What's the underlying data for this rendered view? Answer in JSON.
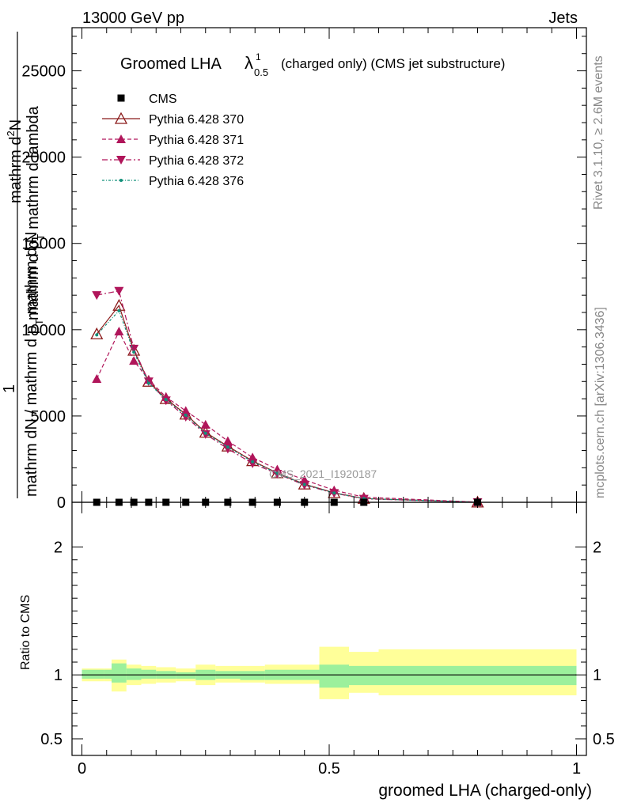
{
  "header": {
    "left": "13000 GeV pp",
    "right": "Jets"
  },
  "side": {
    "rivet": "Rivet 3.1.10, ≥ 2.6M events",
    "mcplots": "mcplots.cern.ch [arXiv:1306.3436]"
  },
  "watermark": "CMS_2021_I1920187",
  "chart_data": [
    {
      "type": "line",
      "title_main": "Groomed LHA",
      "title_lambda": "λ",
      "title_sup": "1",
      "title_sub": "0.5",
      "title_rest": "(charged only) (CMS jet substructure)",
      "ylabel": {
        "top_num": "mathrm d",
        "top_N": "N",
        "top_sup": "2",
        "top_den": "mathrm d p",
        "top_den_sub": "T",
        "top_den2": "mathrm d lambda",
        "prefix_num": "1",
        "prefix_den": "mathrm dN / mathrm d p",
        "prefix_den_sub": "T",
        "prefix_den2": "mathrm d N"
      },
      "xlim": [
        -0.02,
        1.02
      ],
      "ylim": [
        0,
        27500
      ],
      "yticks": [
        "0",
        "5000",
        "10000",
        "15000",
        "20000",
        "25000"
      ],
      "ytick_values": [
        0,
        5000,
        10000,
        15000,
        20000,
        25000
      ],
      "x": [
        0.03,
        0.075,
        0.105,
        0.135,
        0.17,
        0.21,
        0.25,
        0.295,
        0.345,
        0.395,
        0.45,
        0.51,
        0.57,
        0.8
      ],
      "series": [
        {
          "name": "CMS",
          "color": "#000000",
          "marker": "square",
          "dash": "",
          "values": [
            0,
            0,
            0,
            0,
            0,
            0,
            0,
            0,
            0,
            0,
            0,
            0,
            0,
            0
          ]
        },
        {
          "name": "Pythia 6.428 370",
          "color": "#8b1a1a",
          "marker": "tri-up-open",
          "dash": "",
          "values": [
            9750,
            11400,
            8800,
            7000,
            6000,
            5100,
            4050,
            3250,
            2400,
            1700,
            1050,
            550,
            220,
            5
          ]
        },
        {
          "name": "Pythia 6.428 371",
          "color": "#b0155a",
          "marker": "tri-up",
          "dash": "5,3",
          "values": [
            7150,
            9900,
            8200,
            7100,
            6100,
            5300,
            4500,
            3550,
            2600,
            1900,
            1300,
            700,
            300,
            10
          ]
        },
        {
          "name": "Pythia 6.428 372",
          "color": "#b0155a",
          "marker": "tri-down",
          "dash": "7,3,2,3",
          "values": [
            12000,
            12250,
            8900,
            7000,
            5900,
            4950,
            3950,
            3100,
            2250,
            1650,
            1000,
            530,
            200,
            5
          ]
        },
        {
          "name": "Pythia 6.428 376",
          "color": "#13907a",
          "marker": "dot",
          "dash": "3,2,1,2",
          "values": [
            9700,
            11100,
            8700,
            6900,
            5950,
            5050,
            4000,
            3200,
            2350,
            1680,
            1030,
            540,
            215,
            5
          ]
        }
      ]
    },
    {
      "type": "area",
      "ylabel": "Ratio to CMS",
      "xlabel": "groomed LHA (charged-only)",
      "xlim": [
        -0.02,
        1.02
      ],
      "ylim": [
        0.37,
        2.35
      ],
      "xticks": [
        "0",
        "0.5",
        "1"
      ],
      "xtick_values": [
        0,
        0.5,
        1
      ],
      "yticks": [
        "0.5",
        "1",
        "2"
      ],
      "ytick_values": [
        0.5,
        1,
        2
      ],
      "bin_edges": [
        0,
        0.045,
        0.06,
        0.09,
        0.12,
        0.15,
        0.19,
        0.23,
        0.27,
        0.32,
        0.37,
        0.42,
        0.48,
        0.54,
        0.6,
        1.0
      ],
      "stat_band": [
        [
          0.97,
          1.04
        ],
        [
          0.97,
          1.04
        ],
        [
          0.94,
          1.09
        ],
        [
          0.96,
          1.05
        ],
        [
          0.97,
          1.04
        ],
        [
          0.97,
          1.03
        ],
        [
          0.97,
          1.02
        ],
        [
          0.96,
          1.04
        ],
        [
          0.97,
          1.03
        ],
        [
          0.96,
          1.03
        ],
        [
          0.96,
          1.04
        ],
        [
          0.96,
          1.04
        ],
        [
          0.9,
          1.08
        ],
        [
          0.92,
          1.07
        ],
        [
          0.92,
          1.07
        ]
      ],
      "syst_band": [
        [
          0.95,
          1.05
        ],
        [
          0.95,
          1.05
        ],
        [
          0.87,
          1.12
        ],
        [
          0.92,
          1.08
        ],
        [
          0.93,
          1.07
        ],
        [
          0.94,
          1.06
        ],
        [
          0.95,
          1.05
        ],
        [
          0.92,
          1.08
        ],
        [
          0.94,
          1.07
        ],
        [
          0.94,
          1.07
        ],
        [
          0.93,
          1.08
        ],
        [
          0.93,
          1.08
        ],
        [
          0.81,
          1.22
        ],
        [
          0.86,
          1.18
        ],
        [
          0.84,
          1.2
        ]
      ],
      "stat_color": "#9cf09c",
      "syst_color": "#ffff99",
      "ref_line": 1
    }
  ]
}
